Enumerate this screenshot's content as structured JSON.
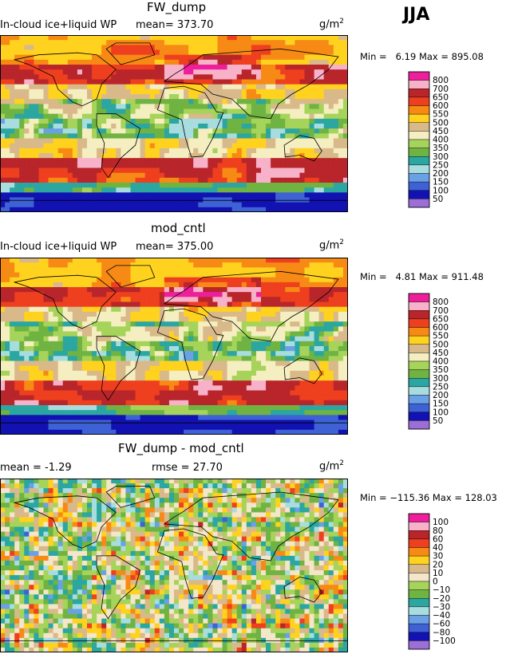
{
  "season": "JJA",
  "units_base": "g/m",
  "units_sup": "2",
  "panels": [
    {
      "title": "FW_dump",
      "left_text": "In-cloud ice+liquid WP",
      "stat_text": "mean=  373.70",
      "min_text": "Min =",
      "min_value": "6.19",
      "max_text": "Max =",
      "max_value": "895.08",
      "colorbar_labels": [
        "800",
        "700",
        "650",
        "600",
        "550",
        "500",
        "450",
        "400",
        "350",
        "300",
        "250",
        "200",
        "150",
        "100",
        "50"
      ],
      "colorbar_colors": [
        "#ee1f9b",
        "#f7b2c9",
        "#b8252a",
        "#ee3f1f",
        "#f78a15",
        "#ffd21f",
        "#d9b98a",
        "#f4eec0",
        "#a6d35a",
        "#6fb343",
        "#2ba6a1",
        "#a8dde0",
        "#6aa1e6",
        "#3e62d5",
        "#1212b3",
        "#9b6fd6"
      ],
      "chart_data": {
        "type": "heatmap",
        "title": "FW_dump",
        "field": "In-cloud ice+liquid WP",
        "units": "g/m2",
        "mean": 373.7,
        "min": 6.19,
        "max": 895.08,
        "levels": [
          50,
          100,
          150,
          200,
          250,
          300,
          350,
          400,
          450,
          500,
          550,
          600,
          650,
          700,
          800
        ]
      }
    },
    {
      "title": "mod_cntl",
      "left_text": "In-cloud ice+liquid WP",
      "stat_text": "mean=  375.00",
      "min_text": "Min =",
      "min_value": "4.81",
      "max_text": "Max =",
      "max_value": "911.48",
      "colorbar_labels": [
        "800",
        "700",
        "650",
        "600",
        "550",
        "500",
        "450",
        "400",
        "350",
        "300",
        "250",
        "200",
        "150",
        "100",
        "50"
      ],
      "colorbar_colors": [
        "#ee1f9b",
        "#f7b2c9",
        "#b8252a",
        "#ee3f1f",
        "#f78a15",
        "#ffd21f",
        "#d9b98a",
        "#f4eec0",
        "#a6d35a",
        "#6fb343",
        "#2ba6a1",
        "#a8dde0",
        "#6aa1e6",
        "#3e62d5",
        "#1212b3",
        "#9b6fd6"
      ],
      "chart_data": {
        "type": "heatmap",
        "title": "mod_cntl",
        "field": "In-cloud ice+liquid WP",
        "units": "g/m2",
        "mean": 375.0,
        "min": 4.81,
        "max": 911.48,
        "levels": [
          50,
          100,
          150,
          200,
          250,
          300,
          350,
          400,
          450,
          500,
          550,
          600,
          650,
          700,
          800
        ]
      }
    },
    {
      "title": "FW_dump - mod_cntl",
      "left_text": "mean =   -1.29",
      "stat_text": "rmse =   27.70",
      "min_text": "Min =",
      "min_value": "−115.36",
      "max_text": "Max =",
      "max_value": "128.03",
      "colorbar_labels": [
        "100",
        "80",
        "60",
        "40",
        "30",
        "20",
        "10",
        "0",
        "−10",
        "−20",
        "−30",
        "−40",
        "−60",
        "−80",
        "−100"
      ],
      "colorbar_colors": [
        "#ee1f9b",
        "#f7b2c9",
        "#b8252a",
        "#ee3f1f",
        "#f78a15",
        "#ffd21f",
        "#d9b98a",
        "#f4e6c8",
        "#a6d35a",
        "#6fb343",
        "#2ba6a1",
        "#a8dde0",
        "#6aa1e6",
        "#3e62d5",
        "#1212b3",
        "#9b6fd6"
      ],
      "chart_data": {
        "type": "heatmap",
        "title": "FW_dump - mod_cntl",
        "units": "g/m2",
        "mean": -1.29,
        "rmse": 27.7,
        "min": -115.36,
        "max": 128.03,
        "levels": [
          -100,
          -80,
          -60,
          -40,
          -30,
          -20,
          -10,
          0,
          10,
          20,
          30,
          40,
          60,
          80,
          100
        ]
      }
    }
  ]
}
